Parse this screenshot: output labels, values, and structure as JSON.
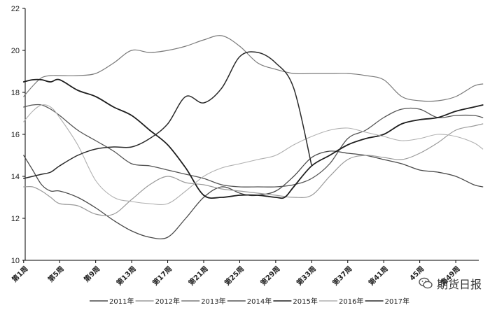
{
  "chart_data": {
    "type": "line",
    "ylim": [
      10,
      22
    ],
    "yticks": [
      10,
      12,
      14,
      16,
      18,
      20,
      22
    ],
    "x_tick_labels": [
      "第1周",
      "第5周",
      "第9周",
      "第13周",
      "第17周",
      "第21周",
      "第25周",
      "第29周",
      "第33周",
      "第37周",
      "第41周",
      "45周",
      "第49周"
    ],
    "x_tick_weeks": [
      1,
      5,
      9,
      13,
      17,
      21,
      25,
      29,
      33,
      37,
      41,
      45,
      49
    ],
    "xlim": [
      1,
      52
    ],
    "grid": false,
    "legend_position": "bottom",
    "series": [
      {
        "name": "2011年",
        "color": "#4a4a4a",
        "x": [
          1,
          2,
          3,
          4,
          5,
          7,
          9,
          11,
          13,
          15,
          17,
          19,
          21,
          23,
          25,
          26,
          27,
          29,
          31,
          33,
          35,
          37,
          39,
          41,
          43,
          45,
          47,
          49,
          51,
          52
        ],
        "y": [
          15.0,
          14.3,
          13.6,
          13.3,
          13.3,
          13.0,
          12.5,
          11.9,
          11.4,
          11.1,
          11.1,
          12.0,
          13.0,
          13.5,
          13.2,
          13.1,
          13.1,
          13.3,
          14.0,
          14.9,
          15.2,
          15.1,
          15.0,
          14.8,
          14.6,
          14.3,
          14.2,
          14.0,
          13.6,
          13.5
        ]
      },
      {
        "name": "2012年",
        "color": "#9a9a9a",
        "x": [
          1,
          2,
          3,
          4,
          5,
          7,
          9,
          11,
          13,
          15,
          17,
          19,
          21,
          23,
          25,
          27,
          29,
          31,
          33,
          35,
          37,
          39,
          41,
          43,
          45,
          47,
          49,
          51,
          52
        ],
        "y": [
          13.5,
          13.5,
          13.3,
          13.0,
          12.7,
          12.6,
          12.2,
          12.2,
          12.9,
          13.6,
          14.0,
          13.7,
          13.6,
          13.4,
          13.3,
          13.2,
          13.1,
          13.0,
          13.1,
          14.0,
          14.8,
          15.0,
          14.9,
          14.8,
          15.1,
          15.6,
          16.2,
          16.4,
          16.5
        ]
      },
      {
        "name": "2013年",
        "color": "#7a7a7a",
        "x": [
          1,
          2,
          3,
          4,
          5,
          7,
          9,
          11,
          13,
          15,
          17,
          19,
          21,
          23,
          25,
          27,
          29,
          31,
          33,
          35,
          37,
          39,
          41,
          43,
          45,
          47,
          49,
          51,
          52
        ],
        "y": [
          17.8,
          18.3,
          18.7,
          18.8,
          18.8,
          18.8,
          18.9,
          19.4,
          20.0,
          19.9,
          20.0,
          20.2,
          20.5,
          20.7,
          20.2,
          19.4,
          19.1,
          18.9,
          18.9,
          18.9,
          18.9,
          18.8,
          18.6,
          17.8,
          17.6,
          17.6,
          17.8,
          18.3,
          18.4
        ]
      },
      {
        "name": "2014年",
        "color": "#555555",
        "x": [
          1,
          2,
          3,
          4,
          5,
          7,
          9,
          11,
          13,
          15,
          17,
          19,
          21,
          23,
          25,
          27,
          29,
          31,
          33,
          35,
          37,
          39,
          41,
          43,
          45,
          47,
          49,
          51,
          52
        ],
        "y": [
          17.3,
          17.4,
          17.4,
          17.2,
          16.9,
          16.2,
          15.7,
          15.2,
          14.6,
          14.5,
          14.3,
          14.1,
          13.9,
          13.6,
          13.5,
          13.5,
          13.5,
          13.6,
          13.9,
          14.6,
          15.8,
          16.2,
          16.8,
          17.2,
          17.2,
          16.8,
          16.9,
          16.9,
          16.8
        ]
      },
      {
        "name": "2015年",
        "color": "#1e1e1e",
        "x": [
          1,
          2,
          3,
          4,
          5,
          7,
          9,
          11,
          13,
          15,
          17,
          19,
          21,
          23,
          25,
          27,
          29,
          30,
          31,
          33,
          35,
          37,
          39,
          41,
          43,
          45,
          47,
          49,
          51,
          52
        ],
        "y": [
          18.5,
          18.6,
          18.6,
          18.5,
          18.6,
          18.1,
          17.8,
          17.3,
          16.9,
          16.2,
          15.5,
          14.4,
          13.1,
          13.0,
          13.1,
          13.1,
          13.0,
          13.0,
          13.5,
          14.5,
          15.0,
          15.5,
          15.8,
          16.0,
          16.5,
          16.7,
          16.8,
          17.1,
          17.3,
          17.4
        ]
      },
      {
        "name": "2016年",
        "color": "#b0b0b0",
        "x": [
          1,
          2,
          3,
          4,
          5,
          7,
          9,
          11,
          13,
          15,
          17,
          19,
          21,
          23,
          25,
          27,
          29,
          31,
          33,
          35,
          37,
          39,
          41,
          43,
          45,
          47,
          49,
          51,
          52
        ],
        "y": [
          16.6,
          17.1,
          17.4,
          17.3,
          16.8,
          15.5,
          13.8,
          13.0,
          12.8,
          12.7,
          12.7,
          13.3,
          14.0,
          14.4,
          14.6,
          14.8,
          15.0,
          15.5,
          15.9,
          16.2,
          16.3,
          16.1,
          15.9,
          15.7,
          15.8,
          16.0,
          15.9,
          15.6,
          15.3
        ]
      },
      {
        "name": "2017年",
        "color": "#2a2a2a",
        "x": [
          1,
          2,
          3,
          4,
          5,
          7,
          9,
          11,
          13,
          15,
          17,
          19,
          21,
          23,
          25,
          27,
          29,
          31,
          33
        ],
        "y": [
          13.9,
          14.0,
          14.1,
          14.2,
          14.5,
          15.0,
          15.3,
          15.4,
          15.4,
          15.8,
          16.5,
          17.8,
          17.5,
          18.2,
          19.7,
          19.9,
          19.4,
          18.2,
          14.5
        ]
      }
    ]
  },
  "watermark": {
    "text": "期货日报"
  }
}
